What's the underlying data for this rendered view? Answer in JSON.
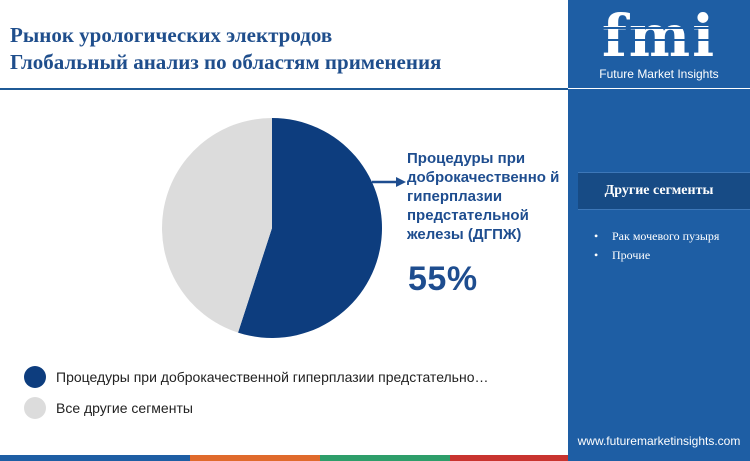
{
  "header": {
    "title_line1": "Рынок урологических электродов",
    "title_line2": "Глобальный анализ по областям применения"
  },
  "chart_data": {
    "type": "pie",
    "title": "Рынок урологических электродов Глобальный анализ по областям применения",
    "categories": [
      "Процедуры при доброкачественной гиперплазии предстательно…",
      "Все другие сегменты"
    ],
    "values": [
      55,
      45
    ],
    "colors": [
      "#0d3d7e",
      "#dcdcdc"
    ],
    "callout": {
      "label": "Процедуры при доброкачественно й гиперплазии предстательной железы (ДГПЖ)",
      "value_text": "55%"
    },
    "legend": [
      {
        "label": "Процедуры при доброкачественной гиперплазии предстательно…",
        "color": "#0d3d7e"
      },
      {
        "label": "Все другие сегменты",
        "color": "#dcdcdc"
      }
    ]
  },
  "sidebar": {
    "logo_text": "fmi",
    "logo_subtitle": "Future Market Insights",
    "other_segments_title": "Другие сегменты",
    "items": [
      "Рак мочевого пузыря",
      "Прочие"
    ],
    "website": "www.futuremarketinsights.com",
    "bg_color": "#1e5ea4"
  },
  "footer_bar_colors": [
    "#1e5ea4",
    "#e06a2c",
    "#2e9e6a",
    "#c9342f"
  ]
}
